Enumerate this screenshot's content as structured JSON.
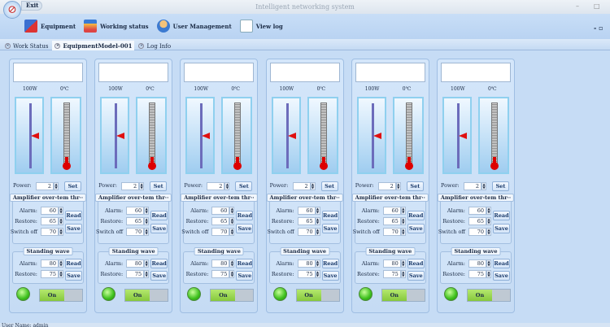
{
  "app": {
    "title": "Intelligent networking system",
    "exit_label": "Exit"
  },
  "ribbon": [
    {
      "label": "Equipment",
      "icon": "equipment-icon"
    },
    {
      "label": "Working status",
      "icon": "working-status-icon"
    },
    {
      "label": "User Management",
      "icon": "user-icon"
    },
    {
      "label": "View log",
      "icon": "view-log-icon"
    }
  ],
  "tabs": [
    {
      "label": "Work Status"
    },
    {
      "label": "EquipmentModel-001",
      "active": true
    },
    {
      "label": "Log Info"
    }
  ],
  "card_labels": {
    "power": "Power:",
    "set": "Set",
    "amp_group": "Amplifier over-tem thr··",
    "alarm": "Alarm:",
    "restore": "Restore:",
    "switch_off": "Switch off",
    "read": "Read",
    "save": "Save",
    "sw_group": "Standing wave",
    "toggle_on": "On"
  },
  "cards": [
    {
      "power_reading": "100W",
      "temp_reading": "0℃",
      "power_level": 0.5,
      "power": "2",
      "amp_alarm": "60",
      "amp_restore": "65",
      "amp_switch_off": "70",
      "sw_alarm": "80",
      "sw_restore": "75"
    },
    {
      "power_reading": "100W",
      "temp_reading": "0℃",
      "power_level": 0.5,
      "power": "2",
      "amp_alarm": "60",
      "amp_restore": "65",
      "amp_switch_off": "70",
      "sw_alarm": "80",
      "sw_restore": "75"
    },
    {
      "power_reading": "100W",
      "temp_reading": "0℃",
      "power_level": 0.5,
      "power": "2",
      "amp_alarm": "60",
      "amp_restore": "65",
      "amp_switch_off": "70",
      "sw_alarm": "80",
      "sw_restore": "75"
    },
    {
      "power_reading": "100W",
      "temp_reading": "0℃",
      "power_level": 0.5,
      "power": "2",
      "amp_alarm": "60",
      "amp_restore": "65",
      "amp_switch_off": "70",
      "sw_alarm": "80",
      "sw_restore": "75"
    },
    {
      "power_reading": "100W",
      "temp_reading": "0℃",
      "power_level": 0.5,
      "power": "2",
      "amp_alarm": "60",
      "amp_restore": "65",
      "amp_switch_off": "70",
      "sw_alarm": "80",
      "sw_restore": "75"
    },
    {
      "power_reading": "100W",
      "temp_reading": "0℃",
      "power_level": 0.5,
      "power": "2",
      "amp_alarm": "60",
      "amp_restore": "65",
      "amp_switch_off": "70",
      "sw_alarm": "80",
      "sw_restore": "75"
    }
  ],
  "status": {
    "user": "User Name: admin"
  },
  "colors": {
    "led_on": "#3cbf1c",
    "arrow": "#e01010",
    "toggle_on": "#86c83c"
  }
}
